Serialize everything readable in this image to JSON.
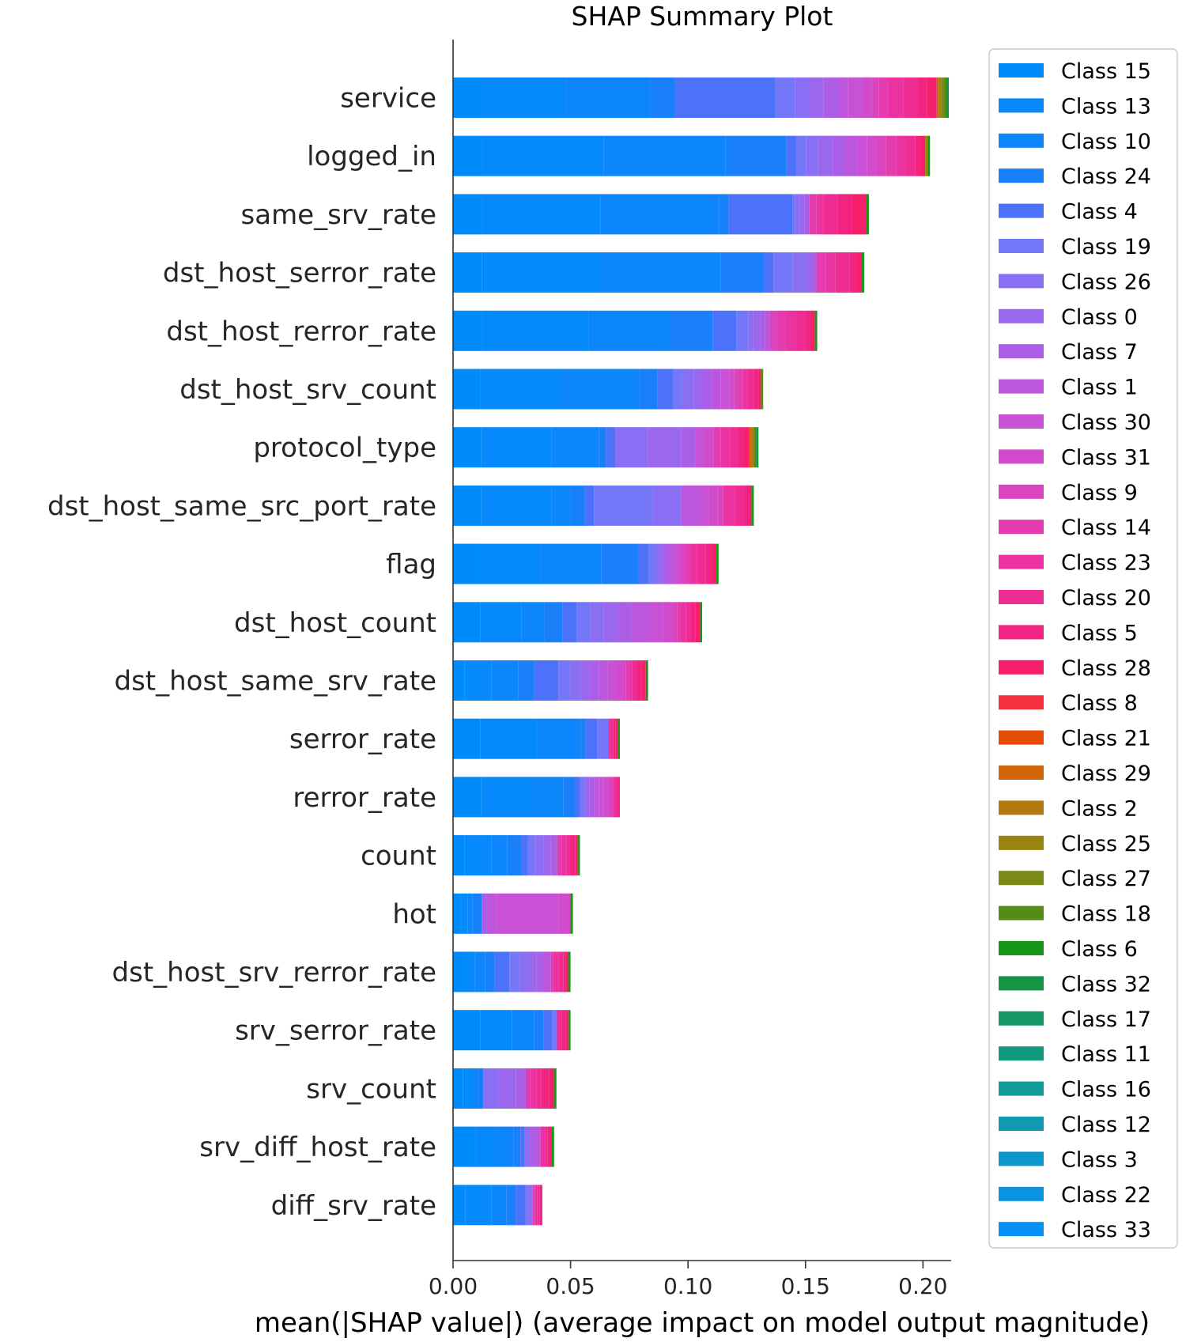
{
  "chart_data": {
    "type": "bar",
    "orientation": "horizontal",
    "stacked": true,
    "title": "SHAP Summary Plot",
    "xlabel": "mean(|SHAP value|) (average impact on model output magnitude)",
    "ylabel": "",
    "xlim": [
      0,
      0.212
    ],
    "xticks": [
      "0.00",
      "0.05",
      "0.10",
      "0.15",
      "0.20"
    ],
    "legend_position": "right",
    "categories": [
      "service",
      "logged_in",
      "same_srv_rate",
      "dst_host_serror_rate",
      "dst_host_rerror_rate",
      "dst_host_srv_count",
      "protocol_type",
      "dst_host_same_src_port_rate",
      "flag",
      "dst_host_count",
      "dst_host_same_srv_rate",
      "serror_rate",
      "rerror_rate",
      "count",
      "hot",
      "dst_host_srv_rerror_rate",
      "srv_serror_rate",
      "srv_count",
      "srv_diff_host_rate",
      "diff_srv_rate"
    ],
    "totals": [
      0.211,
      0.203,
      0.177,
      0.175,
      0.155,
      0.132,
      0.13,
      0.128,
      0.113,
      0.106,
      0.083,
      0.071,
      0.071,
      0.054,
      0.051,
      0.05,
      0.05,
      0.044,
      0.043,
      0.038
    ],
    "series": [
      {
        "name": "Class 15",
        "color": "#008bfb",
        "values": [
          0.012,
          0.012,
          0.012,
          0.012,
          0.012,
          0.012,
          0.012,
          0.012,
          0.012,
          0.012,
          0.005,
          0.012,
          0.012,
          0.005,
          0.003,
          0.005,
          0.012,
          0.004,
          0.01,
          0.005
        ]
      },
      {
        "name": "Class 13",
        "color": "#0589fb",
        "values": [
          0.035,
          0.05,
          0.05,
          0.05,
          0.045,
          0.036,
          0.03,
          0.03,
          0.028,
          0.018,
          0.012,
          0.025,
          0.022,
          0.012,
          0.003,
          0.004,
          0.014,
          0.004,
          0.009,
          0.011
        ]
      },
      {
        "name": "Class 10",
        "color": "#0c86fa",
        "values": [
          0.035,
          0.05,
          0.05,
          0.05,
          0.034,
          0.035,
          0.02,
          0.008,
          0.028,
          0.01,
          0.012,
          0.019,
          0.013,
          0.007,
          0.002,
          0.004,
          0.01,
          0.002,
          0.008,
          0.006
        ]
      },
      {
        "name": "Class 24",
        "color": "#1a80fa",
        "values": [
          0.01,
          0.025,
          0.004,
          0.018,
          0.018,
          0.008,
          0.003,
          0.006,
          0.017,
          0.008,
          0.007,
          0.002,
          0.005,
          0.006,
          0.004,
          0.004,
          0.004,
          0.002,
          0.003,
          0.004
        ]
      },
      {
        "name": "Class 4",
        "color": "#4c72f9",
        "values": [
          0.042,
          0.004,
          0.027,
          0.004,
          0.01,
          0.007,
          0.004,
          0.004,
          0.005,
          0.006,
          0.011,
          0.005,
          0.002,
          0.003,
          0.0,
          0.006,
          0.004,
          0.0,
          0.002,
          0.004
        ]
      },
      {
        "name": "Class 19",
        "color": "#7477f7",
        "values": [
          0.008,
          0.004,
          0.001,
          0.008,
          0.005,
          0.004,
          0.0,
          0.025,
          0.003,
          0.006,
          0.005,
          0.005,
          0.002,
          0.003,
          0.0,
          0.004,
          0.002,
          0.0,
          0.0,
          0.001
        ]
      },
      {
        "name": "Class 26",
        "color": "#8a6ef3",
        "values": [
          0.006,
          0.005,
          0.002,
          0.006,
          0.002,
          0.005,
          0.014,
          0.012,
          0.002,
          0.006,
          0.005,
          0.0,
          0.0,
          0.004,
          0.0,
          0.004,
          0.0,
          0.006,
          0.002,
          0.002
        ]
      },
      {
        "name": "Class 0",
        "color": "#9a67ed",
        "values": [
          0.006,
          0.006,
          0.002,
          0.002,
          0.003,
          0.004,
          0.014,
          0.0,
          0.002,
          0.006,
          0.004,
          0.0,
          0.002,
          0.003,
          0.0,
          0.003,
          0.0,
          0.007,
          0.0,
          0.0
        ]
      },
      {
        "name": "Class 7",
        "color": "#ab5ee6",
        "values": [
          0.006,
          0.005,
          0.002,
          0.002,
          0.002,
          0.004,
          0.006,
          0.0,
          0.002,
          0.006,
          0.004,
          0.0,
          0.002,
          0.003,
          0.002,
          0.003,
          0.0,
          0.004,
          0.003,
          0.0
        ]
      },
      {
        "name": "Class 1",
        "color": "#bb56dd",
        "values": [
          0.004,
          0.005,
          0.0,
          0.0,
          0.002,
          0.004,
          0.0,
          0.008,
          0.002,
          0.008,
          0.004,
          0.0,
          0.002,
          0.0,
          0.004,
          0.003,
          0.0,
          0.0,
          0.002,
          0.0
        ]
      },
      {
        "name": "Class 30",
        "color": "#c851d5",
        "values": [
          0.006,
          0.004,
          0.0,
          0.0,
          0.0,
          0.004,
          0.004,
          0.004,
          0.002,
          0.006,
          0.004,
          0.0,
          0.002,
          0.0,
          0.026,
          0.0,
          0.0,
          0.0,
          0.0,
          0.0
        ]
      },
      {
        "name": "Class 31",
        "color": "#d14bcc",
        "values": [
          0.004,
          0.004,
          0.0,
          0.0,
          0.0,
          0.002,
          0.004,
          0.004,
          0.002,
          0.004,
          0.003,
          0.0,
          0.002,
          0.0,
          0.004,
          0.0,
          0.0,
          0.0,
          0.0,
          0.0
        ]
      },
      {
        "name": "Class 9",
        "color": "#db44bf",
        "values": [
          0.003,
          0.004,
          0.0,
          0.0,
          0.003,
          0.002,
          0.0,
          0.002,
          0.002,
          0.002,
          0.001,
          0.0,
          0.002,
          0.0,
          0.001,
          0.0,
          0.0,
          0.0,
          0.0,
          0.0
        ]
      },
      {
        "name": "Class 14",
        "color": "#e43cae",
        "values": [
          0.004,
          0.004,
          0.003,
          0.004,
          0.004,
          0.002,
          0.003,
          0.0,
          0.002,
          0.002,
          0.002,
          0.0,
          0.0,
          0.002,
          0.0,
          0.001,
          0.0,
          0.002,
          0.0,
          0.001
        ]
      },
      {
        "name": "Class 23",
        "color": "#ea33a0",
        "values": [
          0.006,
          0.004,
          0.003,
          0.004,
          0.004,
          0.002,
          0.004,
          0.005,
          0.003,
          0.002,
          0.001,
          0.001,
          0.001,
          0.002,
          0.0,
          0.002,
          0.0,
          0.002,
          0.002,
          0.001
        ]
      },
      {
        "name": "Class 20",
        "color": "#ee2c94",
        "values": [
          0.006,
          0.004,
          0.006,
          0.006,
          0.004,
          0.003,
          0.003,
          0.004,
          0.004,
          0.002,
          0.002,
          0.001,
          0.001,
          0.002,
          0.0,
          0.002,
          0.002,
          0.002,
          0.001,
          0.001
        ]
      },
      {
        "name": "Class 5",
        "color": "#f22482",
        "values": [
          0.004,
          0.002,
          0.006,
          0.003,
          0.002,
          0.002,
          0.003,
          0.002,
          0.003,
          0.002,
          0.002,
          0.001,
          0.001,
          0.002,
          0.0,
          0.001,
          0.002,
          0.003,
          0.001,
          0.001
        ]
      },
      {
        "name": "Class 28",
        "color": "#f51f6b",
        "values": [
          0.004,
          0.002,
          0.006,
          0.002,
          0.002,
          0.001,
          0.002,
          0.001,
          0.002,
          0.002,
          0.002,
          0.001,
          0.0,
          0.001,
          0.0,
          0.001,
          0.001,
          0.002,
          0.001,
          0.0
        ]
      },
      {
        "name": "Class 8",
        "color": "#f6303c",
        "values": [
          0.0,
          0.0,
          0.0,
          0.0,
          0.0,
          0.0,
          0.0,
          0.0,
          0.0,
          0.0,
          0.0,
          0.0,
          0.0,
          0.0,
          0.0,
          0.0,
          0.0,
          0.0,
          0.0,
          0.0
        ]
      },
      {
        "name": "Class 21",
        "color": "#e24c07",
        "values": [
          0.0,
          0.0,
          0.0,
          0.0,
          0.0,
          0.0,
          0.0,
          0.0,
          0.0,
          0.0,
          0.0,
          0.0,
          0.0,
          0.0,
          0.0,
          0.0,
          0.0,
          0.0,
          0.0,
          0.0
        ]
      },
      {
        "name": "Class 29",
        "color": "#d0650a",
        "values": [
          0.0,
          0.0,
          0.0,
          0.0,
          0.0,
          0.0,
          0.001,
          0.0,
          0.0,
          0.0,
          0.0,
          0.0,
          0.0,
          0.0,
          0.0,
          0.0,
          0.0,
          0.0,
          0.0,
          0.0
        ]
      },
      {
        "name": "Class 2",
        "color": "#b2770d",
        "values": [
          0.001,
          0.0,
          0.0,
          0.0,
          0.0,
          0.0,
          0.001,
          0.0,
          0.0,
          0.0,
          0.0,
          0.0,
          0.0,
          0.0,
          0.0,
          0.0,
          0.0,
          0.0,
          0.0,
          0.0
        ]
      },
      {
        "name": "Class 25",
        "color": "#978510",
        "values": [
          0.001,
          0.001,
          0.0,
          0.0,
          0.0,
          0.0,
          0.0,
          0.0,
          0.0,
          0.0,
          0.0,
          0.0,
          0.0,
          0.0,
          0.0,
          0.0,
          0.0,
          0.0,
          0.0,
          0.0
        ]
      },
      {
        "name": "Class 27",
        "color": "#7b8a14",
        "values": [
          0.001,
          0.0,
          0.0,
          0.0,
          0.0,
          0.0,
          0.0,
          0.0,
          0.0,
          0.0,
          0.0,
          0.0,
          0.0,
          0.0,
          0.0,
          0.0,
          0.0,
          0.0,
          0.0,
          0.0
        ]
      },
      {
        "name": "Class 18",
        "color": "#538c16",
        "values": [
          0.001,
          0.0,
          0.0,
          0.0,
          0.0,
          0.001,
          0.001,
          0.0,
          0.0,
          0.0,
          0.0,
          0.0,
          0.0,
          0.0,
          0.0,
          0.0,
          0.0,
          0.0,
          0.0,
          0.0
        ]
      },
      {
        "name": "Class 6",
        "color": "#17971a",
        "values": [
          0.0,
          0.001,
          0.001,
          0.001,
          0.001,
          0.0,
          0.0,
          0.001,
          0.001,
          0.001,
          0.001,
          0.001,
          0.0,
          0.001,
          0.001,
          0.001,
          0.001,
          0.001,
          0.001,
          0.0
        ]
      },
      {
        "name": "Class 32",
        "color": "#169445",
        "values": [
          0.001,
          0.0,
          0.0,
          0.0,
          0.0,
          0.0,
          0.001,
          0.0,
          0.0,
          0.0,
          0.0,
          0.0,
          0.0,
          0.0,
          0.0,
          0.0,
          0.0,
          0.0,
          0.0,
          0.0
        ]
      },
      {
        "name": "Class 17",
        "color": "#159865",
        "values": [
          0.0,
          0.0,
          0.0,
          0.0,
          0.0,
          0.0,
          0.0,
          0.0,
          0.0,
          0.0,
          0.0,
          0.0,
          0.0,
          0.0,
          0.0,
          0.0,
          0.0,
          0.0,
          0.0,
          0.0
        ]
      },
      {
        "name": "Class 11",
        "color": "#139a7e",
        "values": [
          0.0,
          0.0,
          0.0,
          0.0,
          0.0,
          0.0,
          0.0,
          0.0,
          0.0,
          0.0,
          0.0,
          0.0,
          0.0,
          0.0,
          0.0,
          0.0,
          0.0,
          0.0,
          0.0,
          0.0
        ]
      },
      {
        "name": "Class 16",
        "color": "#109a98",
        "values": [
          0.0,
          0.0,
          0.0,
          0.0,
          0.0,
          0.0,
          0.0,
          0.0,
          0.0,
          0.0,
          0.0,
          0.0,
          0.0,
          0.0,
          0.0,
          0.0,
          0.0,
          0.0,
          0.0,
          0.0
        ]
      },
      {
        "name": "Class 12",
        "color": "#0f9ab2",
        "values": [
          0.0,
          0.0,
          0.0,
          0.0,
          0.0,
          0.0,
          0.0,
          0.0,
          0.0,
          0.0,
          0.0,
          0.0,
          0.0,
          0.0,
          0.0,
          0.0,
          0.0,
          0.0,
          0.0,
          0.0
        ]
      },
      {
        "name": "Class 3",
        "color": "#0c97cc",
        "values": [
          0.0,
          0.0,
          0.0,
          0.0,
          0.0,
          0.0,
          0.0,
          0.0,
          0.0,
          0.0,
          0.0,
          0.0,
          0.0,
          0.0,
          0.0,
          0.0,
          0.0,
          0.0,
          0.0,
          0.0
        ]
      },
      {
        "name": "Class 22",
        "color": "#0993e2",
        "values": [
          0.0,
          0.0,
          0.0,
          0.0,
          0.0,
          0.0,
          0.0,
          0.0,
          0.0,
          0.0,
          0.0,
          0.0,
          0.0,
          0.0,
          0.0,
          0.0,
          0.0,
          0.0,
          0.0,
          0.0
        ]
      },
      {
        "name": "Class 33",
        "color": "#068ff5",
        "values": [
          0.0,
          0.0,
          0.0,
          0.0,
          0.0,
          0.0,
          0.0,
          0.0,
          0.0,
          0.0,
          0.0,
          0.0,
          0.0,
          0.0,
          0.0,
          0.0,
          0.0,
          0.0,
          0.0,
          0.0
        ]
      }
    ]
  }
}
